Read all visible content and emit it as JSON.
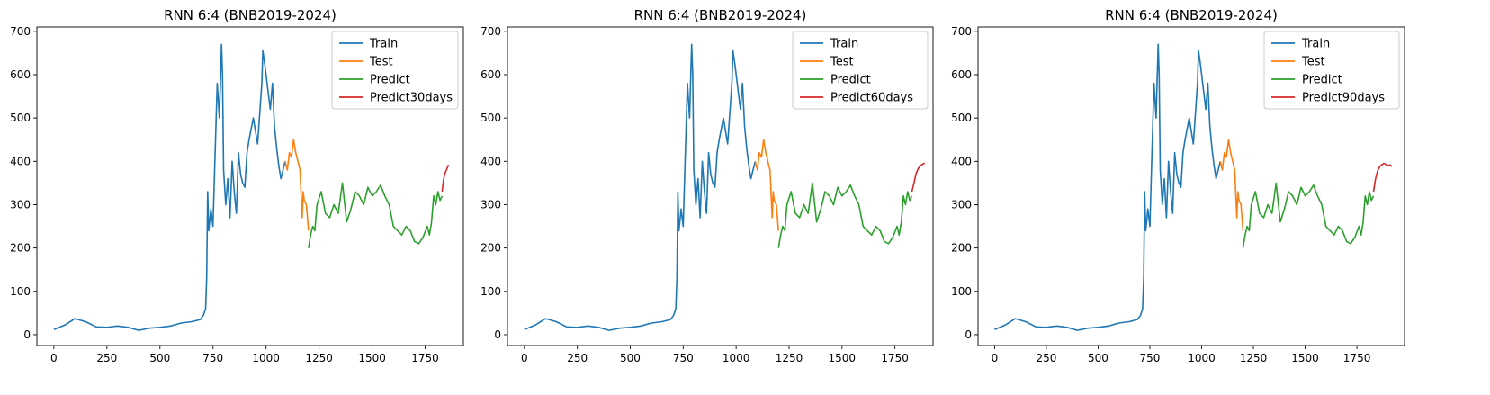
{
  "figure": {
    "colors": {
      "train": "#1f77b4",
      "test": "#ff7f0e",
      "predict": "#2ca02c",
      "forecast": "#d62728"
    }
  },
  "chart_data": [
    {
      "type": "line",
      "title": "RNN 6:4 (BNB2019-2024)",
      "xlabel": "",
      "ylabel": "",
      "xlim": [
        -80,
        1930
      ],
      "ylim": [
        -25,
        710
      ],
      "xticks": [
        0,
        250,
        500,
        750,
        1000,
        1250,
        1500,
        1750
      ],
      "yticks": [
        0,
        100,
        200,
        300,
        400,
        500,
        600,
        700
      ],
      "grid": false,
      "legend_position": "top-right",
      "series": [
        {
          "name": "Train",
          "color": "#1f77b4",
          "x": [
            0,
            50,
            100,
            150,
            200,
            250,
            300,
            350,
            400,
            450,
            500,
            550,
            600,
            650,
            690,
            705,
            715,
            720,
            725,
            730,
            740,
            750,
            760,
            770,
            780,
            790,
            795,
            800,
            810,
            820,
            830,
            840,
            850,
            860,
            870,
            880,
            890,
            900,
            910,
            920,
            940,
            960,
            980,
            985,
            995,
            1010,
            1020,
            1030,
            1040,
            1050,
            1060,
            1070,
            1090
          ],
          "y": [
            12,
            22,
            37,
            30,
            18,
            17,
            20,
            17,
            10,
            15,
            17,
            20,
            27,
            30,
            35,
            45,
            60,
            130,
            330,
            240,
            290,
            250,
            420,
            580,
            500,
            670,
            600,
            380,
            300,
            360,
            270,
            400,
            330,
            280,
            420,
            370,
            350,
            340,
            420,
            450,
            500,
            440,
            580,
            655,
            620,
            560,
            520,
            580,
            480,
            430,
            390,
            360,
            400
          ]
        },
        {
          "name": "Test",
          "color": "#ff7f0e",
          "x": [
            1090,
            1100,
            1110,
            1120,
            1130,
            1140,
            1150,
            1160,
            1170,
            1175,
            1180,
            1190,
            1200
          ],
          "y": [
            400,
            380,
            420,
            410,
            450,
            420,
            400,
            380,
            270,
            330,
            310,
            300,
            240
          ]
        },
        {
          "name": "Predict",
          "color": "#2ca02c",
          "x": [
            1200,
            1210,
            1220,
            1230,
            1240,
            1260,
            1280,
            1300,
            1320,
            1340,
            1360,
            1380,
            1400,
            1420,
            1440,
            1460,
            1480,
            1500,
            1520,
            1540,
            1560,
            1580,
            1600,
            1620,
            1640,
            1660,
            1680,
            1700,
            1720,
            1740,
            1760,
            1770,
            1780,
            1790,
            1800,
            1810,
            1820,
            1830
          ],
          "y": [
            200,
            230,
            250,
            240,
            300,
            330,
            280,
            270,
            300,
            280,
            350,
            260,
            290,
            330,
            320,
            300,
            340,
            320,
            330,
            345,
            320,
            300,
            250,
            240,
            230,
            250,
            240,
            215,
            210,
            225,
            250,
            230,
            260,
            320,
            300,
            330,
            310,
            320
          ]
        },
        {
          "name": "Predict30days",
          "color": "#d62728",
          "x": [
            1830,
            1836,
            1842,
            1848,
            1854,
            1860
          ],
          "y": [
            330,
            355,
            370,
            378,
            385,
            392
          ]
        }
      ]
    },
    {
      "type": "line",
      "title": "RNN 6:4 (BNB2019-2024)",
      "xlabel": "",
      "ylabel": "",
      "xlim": [
        -80,
        1930
      ],
      "ylim": [
        -25,
        710
      ],
      "xticks": [
        0,
        250,
        500,
        750,
        1000,
        1250,
        1500,
        1750
      ],
      "yticks": [
        0,
        100,
        200,
        300,
        400,
        500,
        600,
        700
      ],
      "grid": false,
      "legend_position": "top-right",
      "series": [
        {
          "name": "Train",
          "color": "#1f77b4",
          "x": [
            0,
            50,
            100,
            150,
            200,
            250,
            300,
            350,
            400,
            450,
            500,
            550,
            600,
            650,
            690,
            705,
            715,
            720,
            725,
            730,
            740,
            750,
            760,
            770,
            780,
            790,
            795,
            800,
            810,
            820,
            830,
            840,
            850,
            860,
            870,
            880,
            890,
            900,
            910,
            920,
            940,
            960,
            980,
            985,
            995,
            1010,
            1020,
            1030,
            1040,
            1050,
            1060,
            1070,
            1090
          ],
          "y": [
            12,
            22,
            37,
            30,
            18,
            17,
            20,
            17,
            10,
            15,
            17,
            20,
            27,
            30,
            35,
            45,
            60,
            130,
            330,
            240,
            290,
            250,
            420,
            580,
            500,
            670,
            600,
            380,
            300,
            360,
            270,
            400,
            330,
            280,
            420,
            370,
            350,
            340,
            420,
            450,
            500,
            440,
            580,
            655,
            620,
            560,
            520,
            580,
            480,
            430,
            390,
            360,
            400
          ]
        },
        {
          "name": "Test",
          "color": "#ff7f0e",
          "x": [
            1090,
            1100,
            1110,
            1120,
            1130,
            1140,
            1150,
            1160,
            1170,
            1175,
            1180,
            1190,
            1200
          ],
          "y": [
            400,
            380,
            420,
            410,
            450,
            420,
            400,
            380,
            270,
            330,
            310,
            300,
            240
          ]
        },
        {
          "name": "Predict",
          "color": "#2ca02c",
          "x": [
            1200,
            1210,
            1220,
            1230,
            1240,
            1260,
            1280,
            1300,
            1320,
            1340,
            1360,
            1380,
            1400,
            1420,
            1440,
            1460,
            1480,
            1500,
            1520,
            1540,
            1560,
            1580,
            1600,
            1620,
            1640,
            1660,
            1680,
            1700,
            1720,
            1740,
            1760,
            1770,
            1780,
            1790,
            1800,
            1810,
            1820,
            1830
          ],
          "y": [
            200,
            230,
            250,
            240,
            300,
            330,
            280,
            270,
            300,
            280,
            350,
            260,
            290,
            330,
            320,
            300,
            340,
            320,
            330,
            345,
            320,
            300,
            250,
            240,
            230,
            250,
            240,
            215,
            210,
            225,
            250,
            230,
            260,
            320,
            300,
            330,
            310,
            320
          ]
        },
        {
          "name": "Predict60days",
          "color": "#d62728",
          "x": [
            1830,
            1840,
            1850,
            1860,
            1870,
            1880,
            1890
          ],
          "y": [
            330,
            350,
            372,
            383,
            390,
            393,
            396
          ]
        }
      ]
    },
    {
      "type": "line",
      "title": "RNN 6:4 (BNB2019-2024)",
      "xlabel": "",
      "ylabel": "",
      "xlim": [
        -80,
        1980
      ],
      "ylim": [
        -25,
        710
      ],
      "xticks": [
        0,
        250,
        500,
        750,
        1000,
        1250,
        1500,
        1750
      ],
      "yticks": [
        0,
        100,
        200,
        300,
        400,
        500,
        600,
        700
      ],
      "grid": false,
      "legend_position": "top-right",
      "series": [
        {
          "name": "Train",
          "color": "#1f77b4",
          "x": [
            0,
            50,
            100,
            150,
            200,
            250,
            300,
            350,
            400,
            450,
            500,
            550,
            600,
            650,
            690,
            705,
            715,
            720,
            725,
            730,
            740,
            750,
            760,
            770,
            780,
            790,
            795,
            800,
            810,
            820,
            830,
            840,
            850,
            860,
            870,
            880,
            890,
            900,
            910,
            920,
            940,
            960,
            980,
            985,
            995,
            1010,
            1020,
            1030,
            1040,
            1050,
            1060,
            1070,
            1090
          ],
          "y": [
            12,
            22,
            37,
            30,
            18,
            17,
            20,
            17,
            10,
            15,
            17,
            20,
            27,
            30,
            35,
            45,
            60,
            130,
            330,
            240,
            290,
            250,
            420,
            580,
            500,
            670,
            600,
            380,
            300,
            360,
            270,
            400,
            330,
            280,
            420,
            370,
            350,
            340,
            420,
            450,
            500,
            440,
            580,
            655,
            620,
            560,
            520,
            580,
            480,
            430,
            390,
            360,
            400
          ]
        },
        {
          "name": "Test",
          "color": "#ff7f0e",
          "x": [
            1090,
            1100,
            1110,
            1120,
            1130,
            1140,
            1150,
            1160,
            1170,
            1175,
            1180,
            1190,
            1200
          ],
          "y": [
            400,
            380,
            420,
            410,
            450,
            420,
            400,
            380,
            270,
            330,
            310,
            300,
            240
          ]
        },
        {
          "name": "Predict",
          "color": "#2ca02c",
          "x": [
            1200,
            1210,
            1220,
            1230,
            1240,
            1260,
            1280,
            1300,
            1320,
            1340,
            1360,
            1380,
            1400,
            1420,
            1440,
            1460,
            1480,
            1500,
            1520,
            1540,
            1560,
            1580,
            1600,
            1620,
            1640,
            1660,
            1680,
            1700,
            1720,
            1740,
            1760,
            1770,
            1780,
            1790,
            1800,
            1810,
            1820,
            1830
          ],
          "y": [
            200,
            230,
            250,
            240,
            300,
            330,
            280,
            270,
            300,
            280,
            350,
            260,
            290,
            330,
            320,
            300,
            340,
            320,
            330,
            345,
            320,
            300,
            250,
            240,
            230,
            250,
            240,
            215,
            210,
            225,
            250,
            230,
            260,
            320,
            300,
            330,
            310,
            320
          ]
        },
        {
          "name": "Predict90days",
          "color": "#d62728",
          "x": [
            1830,
            1840,
            1850,
            1860,
            1870,
            1880,
            1890,
            1900,
            1910,
            1920
          ],
          "y": [
            330,
            360,
            378,
            388,
            392,
            395,
            393,
            390,
            392,
            388
          ]
        }
      ]
    }
  ]
}
